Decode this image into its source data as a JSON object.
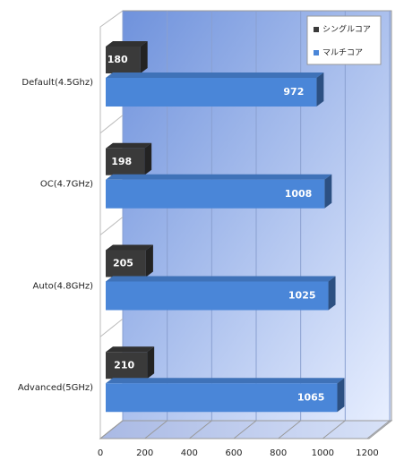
{
  "chart_data": {
    "type": "bar",
    "orientation": "horizontal",
    "categories": [
      "Default(4.5Ghz)",
      "OC(4.7GHz)",
      "Auto(4.8GHz)",
      "Advanced(5GHz)"
    ],
    "series": [
      {
        "name": "シングルコア",
        "color": "#3a3a3a",
        "values": [
          180,
          198,
          205,
          210
        ]
      },
      {
        "name": "マルチコア",
        "color": "#4a86d8",
        "values": [
          972,
          1008,
          1025,
          1065
        ]
      }
    ],
    "xlim": [
      0,
      1200
    ],
    "xticks": [
      0,
      200,
      400,
      600,
      800,
      1000,
      1200
    ],
    "grid": true,
    "legend": "upper right"
  }
}
